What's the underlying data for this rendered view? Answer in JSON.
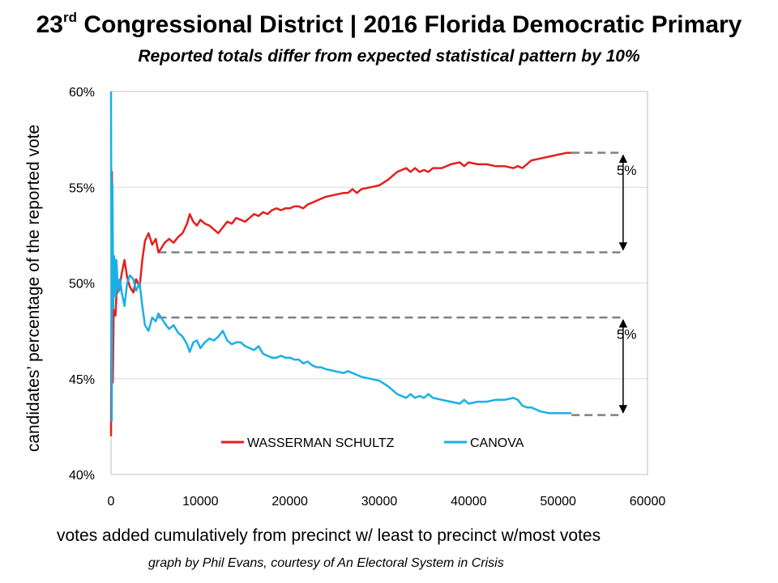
{
  "header": {
    "title_prefix": "23",
    "title_sup": "rd",
    "title_rest": " Congressional District | 2016 Florida Democratic Primary",
    "subtitle": "Reported totals differ from expected statistical pattern by 10%"
  },
  "footer": {
    "xlabel": "votes added cumulatively from precinct w/ least to precinct w/most votes",
    "credit": "graph by Phil Evans, courtesy of An Electoral System in Crisis"
  },
  "chart_data": {
    "type": "line",
    "title": "23rd Congressional District | 2016 Florida Democratic Primary",
    "subtitle": "Reported totals differ from expected statistical pattern by 10%",
    "xlabel": "votes added cumulatively from precinct w/ least to precinct w/most votes",
    "ylabel": "candidates’ percentage of the reported vote",
    "xlim": [
      0,
      60000
    ],
    "ylim": [
      40,
      60
    ],
    "x_ticks": [
      0,
      10000,
      20000,
      30000,
      40000,
      50000,
      60000
    ],
    "x_tick_labels": [
      "0",
      "10000",
      "20000",
      "30000",
      "40000",
      "50000",
      "60000"
    ],
    "y_ticks": [
      40,
      45,
      50,
      55,
      60
    ],
    "y_tick_labels": [
      "40%",
      "45%",
      "50%",
      "55%",
      "60%"
    ],
    "grid": "horizontal",
    "legend_position": "bottom-center",
    "series": [
      {
        "name": "WASSERMAN SCHULTZ",
        "color": "#e61e1e",
        "x": [
          0,
          100,
          200,
          300,
          500,
          700,
          900,
          1200,
          1500,
          1800,
          2100,
          2500,
          2800,
          3200,
          3500,
          3800,
          4200,
          4600,
          5000,
          5300,
          5600,
          6000,
          6500,
          7000,
          7500,
          8000,
          8500,
          8800,
          9200,
          9600,
          10000,
          10500,
          11000,
          11500,
          12000,
          12500,
          13000,
          13500,
          14000,
          14500,
          15000,
          15500,
          16000,
          16500,
          17000,
          17500,
          18000,
          18500,
          19000,
          19500,
          20000,
          20500,
          21000,
          21500,
          22000,
          22500,
          23000,
          23500,
          24000,
          25000,
          26000,
          26500,
          27000,
          27500,
          28000,
          29000,
          30000,
          31000,
          32000,
          33000,
          33500,
          34000,
          34500,
          35000,
          35500,
          36000,
          37000,
          38000,
          39000,
          39500,
          40000,
          41000,
          42000,
          43000,
          44000,
          45000,
          45500,
          46000,
          46500,
          47000,
          48000,
          49000,
          50000,
          51000,
          51500
        ],
        "values": [
          42,
          55.8,
          44.8,
          48.6,
          48.3,
          50.3,
          49.6,
          50.5,
          51.2,
          50.3,
          49.8,
          49.5,
          50.2,
          49.8,
          51.2,
          52.2,
          52.6,
          52.0,
          52.3,
          51.6,
          51.8,
          52.1,
          52.3,
          52.1,
          52.4,
          52.6,
          53.1,
          53.6,
          53.2,
          53.0,
          53.3,
          53.1,
          53.0,
          52.8,
          52.6,
          52.9,
          53.2,
          53.1,
          53.4,
          53.3,
          53.2,
          53.4,
          53.6,
          53.5,
          53.7,
          53.6,
          53.8,
          53.9,
          53.8,
          53.9,
          53.9,
          54.0,
          54.0,
          53.9,
          54.1,
          54.2,
          54.3,
          54.4,
          54.5,
          54.6,
          54.7,
          54.7,
          54.9,
          54.7,
          54.9,
          55.0,
          55.1,
          55.4,
          55.8,
          56.0,
          55.8,
          56.0,
          55.8,
          55.9,
          55.8,
          56.0,
          56.0,
          56.2,
          56.3,
          56.1,
          56.3,
          56.2,
          56.2,
          56.1,
          56.1,
          56.0,
          56.1,
          56.0,
          56.2,
          56.4,
          56.5,
          56.6,
          56.7,
          56.8,
          56.8
        ]
      },
      {
        "name": "CANOVA",
        "color": "#1ab0e6",
        "x": [
          0,
          80,
          150,
          250,
          350,
          500,
          600,
          800,
          1000,
          1200,
          1500,
          1800,
          2100,
          2500,
          2800,
          3200,
          3500,
          3800,
          4200,
          4600,
          5000,
          5300,
          5600,
          6000,
          6500,
          7000,
          7500,
          8000,
          8500,
          8800,
          9200,
          9600,
          10000,
          10500,
          11000,
          11500,
          12000,
          12500,
          13000,
          13500,
          14000,
          14500,
          15000,
          15500,
          16000,
          16500,
          17000,
          17500,
          18000,
          18500,
          19000,
          19500,
          20000,
          20500,
          21000,
          21500,
          22000,
          22500,
          23000,
          23500,
          24000,
          25000,
          26000,
          26500,
          27000,
          27500,
          28000,
          29000,
          30000,
          31000,
          32000,
          33000,
          33500,
          34000,
          34500,
          35000,
          35500,
          36000,
          37000,
          38000,
          39000,
          39500,
          40000,
          41000,
          42000,
          43000,
          44000,
          45000,
          45500,
          46000,
          46500,
          47000,
          48000,
          49000,
          50000,
          51000,
          51500
        ],
        "values": [
          60,
          42.8,
          55.2,
          48.7,
          51.4,
          49.3,
          51.2,
          49.5,
          50.2,
          49.5,
          48.8,
          50.0,
          50.4,
          50.2,
          49.6,
          50.0,
          48.8,
          47.8,
          47.5,
          48.2,
          48.0,
          48.4,
          48.2,
          47.9,
          47.6,
          47.8,
          47.4,
          47.2,
          46.8,
          46.4,
          46.9,
          47.0,
          46.6,
          46.9,
          47.1,
          47.0,
          47.2,
          47.5,
          47.0,
          46.8,
          46.9,
          46.9,
          46.7,
          46.6,
          46.5,
          46.7,
          46.3,
          46.2,
          46.1,
          46.1,
          46.2,
          46.1,
          46.1,
          46.0,
          46.0,
          45.8,
          45.9,
          45.7,
          45.6,
          45.6,
          45.5,
          45.4,
          45.3,
          45.4,
          45.3,
          45.2,
          45.1,
          45.0,
          44.9,
          44.6,
          44.2,
          44.0,
          44.2,
          44.0,
          44.1,
          44.0,
          44.2,
          44.0,
          43.9,
          43.8,
          43.7,
          43.9,
          43.7,
          43.8,
          43.8,
          43.9,
          43.9,
          44.0,
          43.9,
          43.6,
          43.5,
          43.5,
          43.3,
          43.2,
          43.2,
          43.2,
          43.2
        ]
      }
    ],
    "reference_lines": [
      {
        "value": 56.8,
        "x_start": 51500,
        "x_end": 57000
      },
      {
        "value": 51.6,
        "x_start": 5300,
        "x_end": 57000
      },
      {
        "value": 48.2,
        "x_start": 5300,
        "x_end": 57000
      },
      {
        "value": 43.1,
        "x_start": 51500,
        "x_end": 57000
      }
    ],
    "annotations": [
      {
        "text": "5%",
        "x": 57000,
        "from": 56.8,
        "to": 51.6
      },
      {
        "text": "5%",
        "x": 57000,
        "from": 48.2,
        "to": 43.1
      }
    ]
  }
}
